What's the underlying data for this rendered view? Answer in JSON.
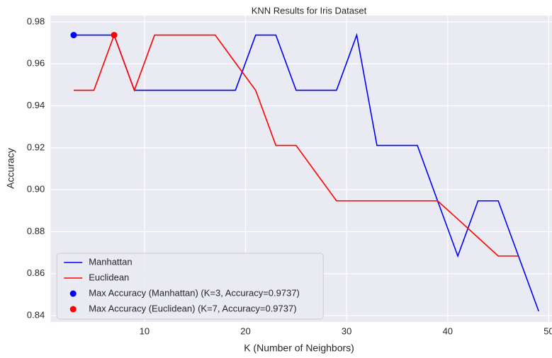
{
  "chart_data": {
    "type": "line",
    "title": "KNN Results for Iris Dataset",
    "xlabel": "K (Number of Neighbors)",
    "ylabel": "Accuracy",
    "xlim": [
      0.7,
      51.3
    ],
    "xticks": [
      10,
      20,
      30,
      40,
      50
    ],
    "ylim": [
      0.837,
      0.983
    ],
    "yticks": [
      {
        "value": 0.84,
        "label": "0.84"
      },
      {
        "value": 0.86,
        "label": "0.86"
      },
      {
        "value": 0.88,
        "label": "0.88"
      },
      {
        "value": 0.9,
        "label": "0.90"
      },
      {
        "value": 0.92,
        "label": "0.92"
      },
      {
        "value": 0.94,
        "label": "0.94"
      },
      {
        "value": 0.96,
        "label": "0.96"
      },
      {
        "value": 0.98,
        "label": "0.98"
      }
    ],
    "grid": true,
    "legend": "lower left",
    "series": [
      {
        "name": "Manhattan",
        "color": "#0000ff",
        "x": [
          3,
          5,
          7,
          9,
          11,
          13,
          15,
          17,
          19,
          21,
          23,
          25,
          27,
          29,
          31,
          33,
          35,
          37,
          39,
          41,
          43,
          45,
          47,
          49
        ],
        "values": [
          0.9737,
          0.9737,
          0.9737,
          0.9474,
          0.9474,
          0.9474,
          0.9474,
          0.9474,
          0.9474,
          0.9737,
          0.9737,
          0.9474,
          0.9474,
          0.9474,
          0.9737,
          0.9211,
          0.9211,
          0.9211,
          0.8947,
          0.8684,
          0.8947,
          0.8947,
          0.8684,
          0.8421
        ]
      },
      {
        "name": "Euclidean",
        "color": "#ff0000",
        "x": [
          3,
          5,
          7,
          9,
          11,
          13,
          15,
          17,
          19,
          21,
          23,
          25,
          27,
          29,
          31,
          33,
          35,
          37,
          39,
          41,
          43,
          45,
          47
        ],
        "values": [
          0.9474,
          0.9474,
          0.9737,
          0.9474,
          0.9737,
          0.9737,
          0.9737,
          0.9737,
          0.9605,
          0.9474,
          0.9211,
          0.9211,
          0.9079,
          0.8947,
          0.8947,
          0.8947,
          0.8947,
          0.8947,
          0.8947,
          0.886,
          0.8772,
          0.8684,
          0.8684
        ]
      }
    ],
    "points": [
      {
        "name": "Max Accuracy (Manhattan) (K=3, Accuracy=0.9737)",
        "color": "#0000ff",
        "x": 3,
        "value": 0.9737
      },
      {
        "name": "Max Accuracy (Euclidean) (K=7, Accuracy=0.9737)",
        "color": "#ff0000",
        "x": 7,
        "value": 0.9737
      }
    ]
  }
}
